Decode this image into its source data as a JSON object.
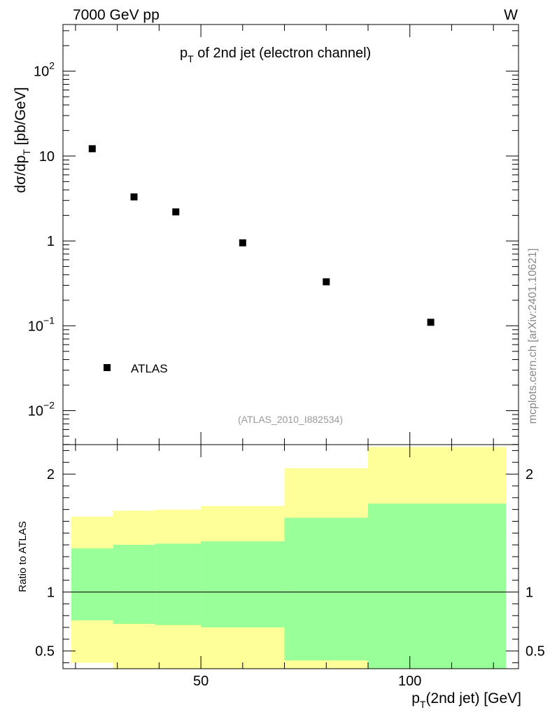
{
  "chart_data": {
    "type": "scatter",
    "header_left": "7000 GeV pp",
    "header_right": "W",
    "title": "p_T of 2nd jet (electron channel)",
    "title_parts": {
      "pre": "p",
      "sub": "T",
      "post": " of 2nd jet (electron channel)"
    },
    "xlabel": "p_T(2nd jet) [GeV]",
    "xlabel_parts": {
      "pre": "p",
      "sub": "T",
      "post": "(2nd jet) [GeV]"
    },
    "ylabel": "dσ/dp_T [pb/GeV]",
    "ylabel_parts": {
      "pre": "dσ/dp",
      "sub": "T",
      "post": " [pb/GeV]"
    },
    "ratio_ylabel": "Ratio to ATLAS",
    "analysis_tag": "(ATLAS_2010_I882534)",
    "side_text": "mcplots.cern.ch [arXiv:2401.10621]",
    "legend": {
      "label": "ATLAS",
      "position": "bottom-left"
    },
    "xlim": [
      17,
      126
    ],
    "ylim_log": [
      -2.4,
      2.55
    ],
    "ratio_ylim": [
      0.35,
      2.25
    ],
    "x_major_ticks": [
      50,
      100
    ],
    "x_tick_labels": [
      "50",
      "100"
    ],
    "y_major_ticks": [
      {
        "value": 0.01,
        "base": "10",
        "exp": "−2"
      },
      {
        "value": 0.1,
        "base": "10",
        "exp": "−1"
      },
      {
        "value": 1,
        "base": "1",
        "exp": ""
      },
      {
        "value": 10,
        "base": "10",
        "exp": ""
      },
      {
        "value": 100,
        "base": "10",
        "exp": "2"
      }
    ],
    "ratio_ticks": [
      {
        "value": 0.5,
        "label": "0.5"
      },
      {
        "value": 1,
        "label": "1"
      },
      {
        "value": 2,
        "label": "2"
      }
    ],
    "series": [
      {
        "name": "ATLAS",
        "x": [
          24,
          34,
          44,
          60,
          80,
          105
        ],
        "y": [
          12.2,
          3.3,
          2.2,
          0.95,
          0.33,
          0.11
        ]
      }
    ],
    "bins": [
      {
        "lo": 19,
        "hi": 29,
        "green_lo": 0.76,
        "green_hi": 1.37,
        "yellow_lo": 0.4,
        "yellow_hi": 1.64
      },
      {
        "lo": 29,
        "hi": 39,
        "green_lo": 0.73,
        "green_hi": 1.4,
        "yellow_lo": 0.35,
        "yellow_hi": 1.69
      },
      {
        "lo": 39,
        "hi": 50,
        "green_lo": 0.72,
        "green_hi": 1.41,
        "yellow_lo": 0.35,
        "yellow_hi": 1.7
      },
      {
        "lo": 50,
        "hi": 70,
        "green_lo": 0.7,
        "green_hi": 1.43,
        "yellow_lo": 0.35,
        "yellow_hi": 1.73
      },
      {
        "lo": 70,
        "hi": 90,
        "green_lo": 0.42,
        "green_hi": 1.63,
        "yellow_lo": 0.35,
        "yellow_hi": 2.05
      },
      {
        "lo": 90,
        "hi": 123,
        "green_lo": 0.35,
        "green_hi": 1.75,
        "yellow_lo": 0.35,
        "yellow_hi": 2.23
      }
    ],
    "band_colors": {
      "green": "#99ff99",
      "yellow": "#ffff99"
    },
    "marker_color": "#000000"
  }
}
